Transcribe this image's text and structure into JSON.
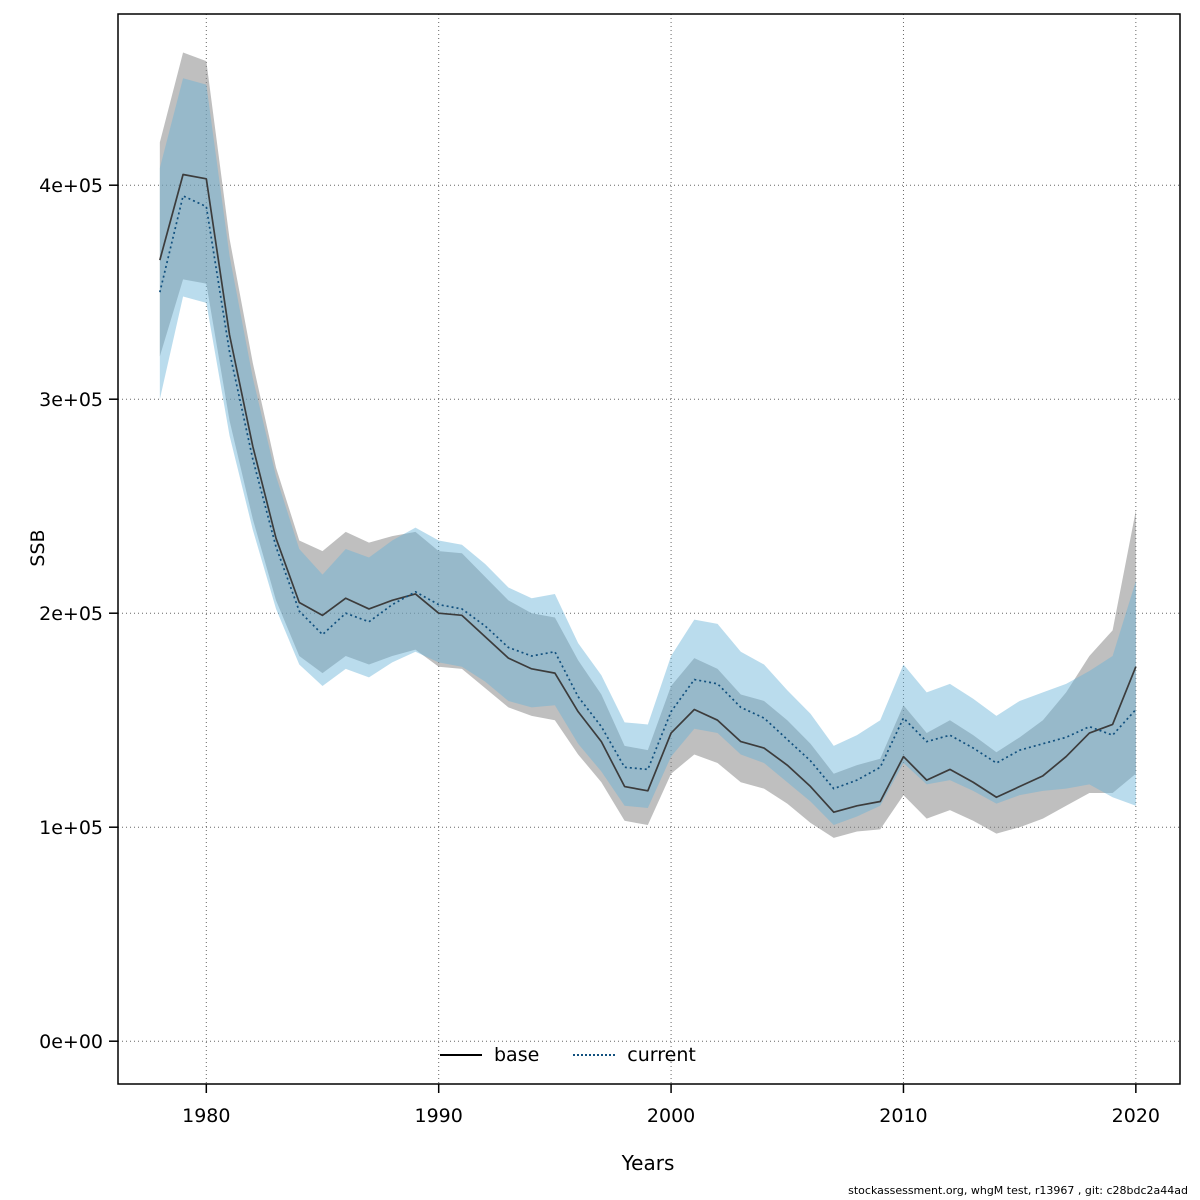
{
  "page": {
    "footer": "stockassessment.org, whgM test, r13967 , git: c28bdc2a44ad"
  },
  "chart_data": {
    "type": "line",
    "title": "",
    "xlabel": "Years",
    "ylabel": "SSB",
    "grid": true,
    "legend_position": "bottom-center-inside",
    "xlim": [
      1976.2,
      2021.9
    ],
    "ylim": [
      -20000,
      480000
    ],
    "x_ticks": [
      1980,
      1990,
      2000,
      2010,
      2020
    ],
    "x_tick_labels": [
      "1980",
      "1990",
      "2000",
      "2010",
      "2020"
    ],
    "y_ticks": [
      0,
      100000,
      200000,
      300000,
      400000
    ],
    "y_tick_labels": [
      "0e+00",
      "1e+05",
      "2e+05",
      "3e+05",
      "4e+05"
    ],
    "colors": {
      "grid": "#666666",
      "plot_border": "#000000",
      "base_line": "#3c3c3c",
      "current_line": "#11507e",
      "base_band": "#808080",
      "current_band": "#66b2d6"
    },
    "x": [
      1978,
      1979,
      1980,
      1981,
      1982,
      1983,
      1984,
      1985,
      1986,
      1987,
      1988,
      1989,
      1990,
      1991,
      1992,
      1993,
      1994,
      1995,
      1996,
      1997,
      1998,
      1999,
      2000,
      2001,
      2002,
      2003,
      2004,
      2005,
      2006,
      2007,
      2008,
      2009,
      2010,
      2011,
      2012,
      2013,
      2014,
      2015,
      2016,
      2017,
      2018,
      2019,
      2020
    ],
    "series": [
      {
        "name": "base",
        "style": "solid",
        "color": "#3c3c3c",
        "band_color": "#808080",
        "band_opacity": 0.5,
        "values": [
          365000,
          405000,
          403000,
          330000,
          278000,
          235000,
          205000,
          199000,
          207000,
          202000,
          206000,
          209000,
          200000,
          199000,
          189000,
          179000,
          174000,
          172000,
          154000,
          140000,
          119000,
          117000,
          144000,
          155000,
          150000,
          140000,
          137000,
          129000,
          119000,
          107000,
          110000,
          112000,
          133000,
          122000,
          127000,
          121000,
          114000,
          119000,
          124000,
          133000,
          144000,
          148000,
          175000
        ],
        "band_lower": [
          320000,
          356000,
          354000,
          290000,
          244000,
          206000,
          180000,
          172000,
          180000,
          176000,
          180000,
          183000,
          175000,
          174000,
          165000,
          156000,
          152000,
          150000,
          134000,
          121000,
          103000,
          101000,
          125000,
          134000,
          130000,
          121000,
          118000,
          111000,
          102000,
          95000,
          98000,
          99000,
          115000,
          104000,
          108000,
          103000,
          97000,
          100000,
          104000,
          110000,
          116000,
          116000,
          125000
        ],
        "band_upper": [
          420000,
          462000,
          458000,
          375000,
          317000,
          268000,
          234000,
          229000,
          238000,
          233000,
          236000,
          238000,
          229000,
          228000,
          217000,
          206000,
          200000,
          198000,
          178000,
          162000,
          138000,
          136000,
          166000,
          179000,
          174000,
          162000,
          159000,
          150000,
          139000,
          125000,
          129000,
          132000,
          157000,
          144000,
          150000,
          143000,
          135000,
          142000,
          150000,
          163000,
          180000,
          192000,
          248000
        ]
      },
      {
        "name": "current",
        "style": "dotted",
        "color": "#11507e",
        "band_color": "#66b2d6",
        "band_opacity": 0.45,
        "values": [
          350000,
          395000,
          390000,
          322000,
          272000,
          231000,
          201000,
          190000,
          200000,
          196000,
          204000,
          210000,
          204000,
          202000,
          194000,
          184000,
          180000,
          182000,
          161000,
          147000,
          128000,
          127000,
          154000,
          169000,
          167000,
          156000,
          151000,
          141000,
          131000,
          118000,
          122000,
          128000,
          151000,
          140000,
          143000,
          137000,
          130000,
          136000,
          139000,
          142000,
          147000,
          143000,
          155000
        ],
        "band_lower": [
          300000,
          348000,
          345000,
          283000,
          239000,
          202000,
          176000,
          166000,
          174000,
          170000,
          177000,
          182000,
          177000,
          175000,
          168000,
          159000,
          156000,
          157000,
          139000,
          126000,
          110000,
          109000,
          133000,
          146000,
          144000,
          134000,
          130000,
          121000,
          112000,
          101000,
          105000,
          110000,
          130000,
          120000,
          122000,
          117000,
          111000,
          115000,
          117000,
          118000,
          120000,
          114000,
          110000
        ],
        "band_upper": [
          408000,
          450000,
          447000,
          367000,
          310000,
          264000,
          230000,
          218000,
          230000,
          226000,
          234000,
          240000,
          234000,
          232000,
          223000,
          212000,
          207000,
          209000,
          186000,
          171000,
          149000,
          148000,
          180000,
          197000,
          195000,
          182000,
          176000,
          164000,
          153000,
          138000,
          143000,
          150000,
          176000,
          163000,
          167000,
          160000,
          152000,
          159000,
          163000,
          167000,
          173000,
          180000,
          215000
        ]
      }
    ],
    "legend": {
      "items": [
        {
          "label": "base",
          "style": "solid",
          "color": "#000000"
        },
        {
          "label": "current",
          "style": "dotted",
          "color": "#11507e"
        }
      ]
    }
  }
}
